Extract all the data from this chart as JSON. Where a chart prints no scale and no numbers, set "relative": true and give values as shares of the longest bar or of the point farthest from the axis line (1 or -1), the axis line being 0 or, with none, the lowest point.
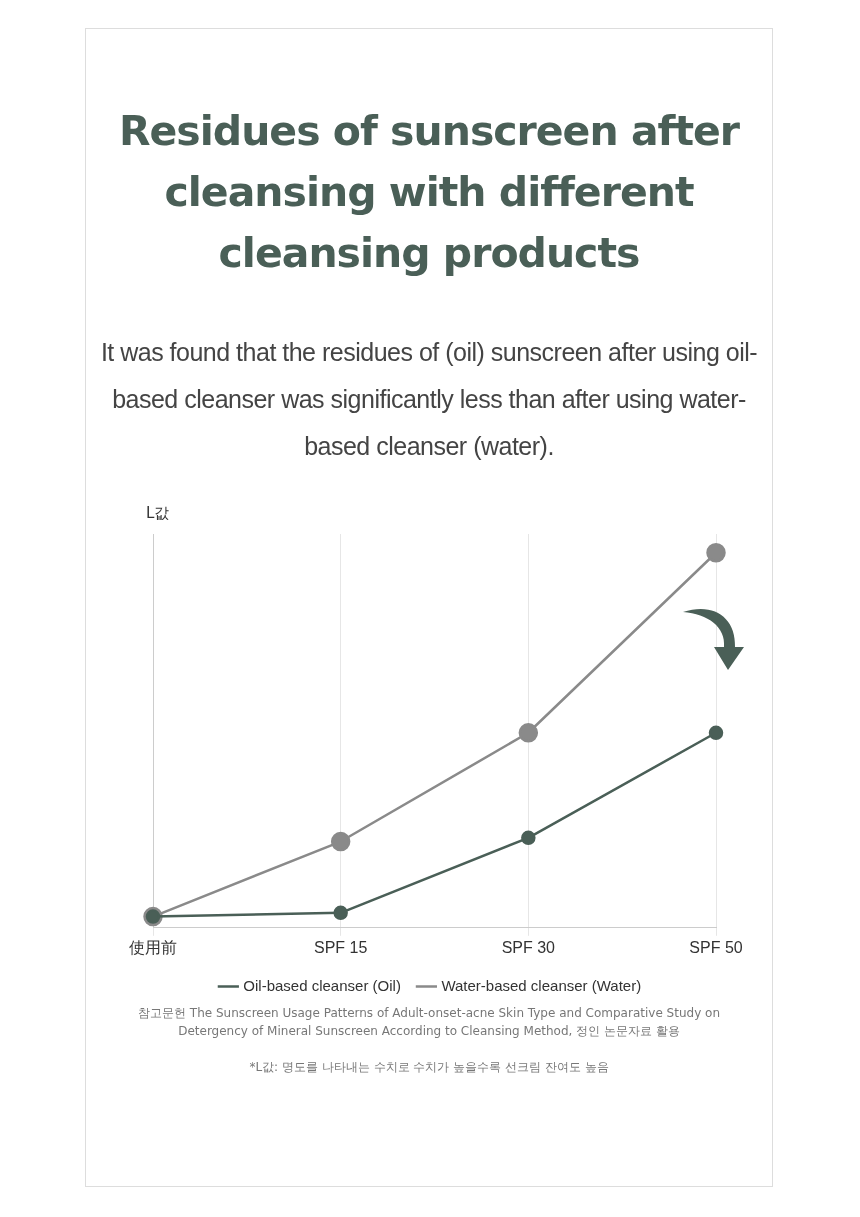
{
  "chart_data": {
    "type": "line",
    "title": "Residues of sunscreen after cleansing with different cleansing products",
    "subtitle": "It was found that the residues of (oil) sunscreen after using oil-based cleanser was significantly less than after using water-based cleanser (water).",
    "ylabel": "L값",
    "relative": true,
    "categories": [
      "使用前",
      "SPF 15",
      "SPF 30",
      "SPF 50"
    ],
    "series": [
      {
        "name": "Oil-based cleanser (Oil)",
        "color": "#4a5f57",
        "values": [
          0.03,
          0.04,
          0.24,
          0.52
        ]
      },
      {
        "name": "Water-based cleanser (Water)",
        "color": "#8a8a8a",
        "values": [
          0.03,
          0.23,
          0.52,
          1
        ]
      }
    ],
    "marker": "circle",
    "line_style": "solid",
    "grid": "x",
    "legend": "bottom",
    "annotations": [
      "참고문헌 The Sunscreen Usage Patterns of Adult-onset-acne Skin Type and Comparative Study on Detergency of Mineral Sunscreen According to Cleansing Method, 정인 논문자료 활용",
      "*L값: 명도를 나타내는 수치로 수치가 높을수록 선크림 잔여도 높음"
    ]
  }
}
